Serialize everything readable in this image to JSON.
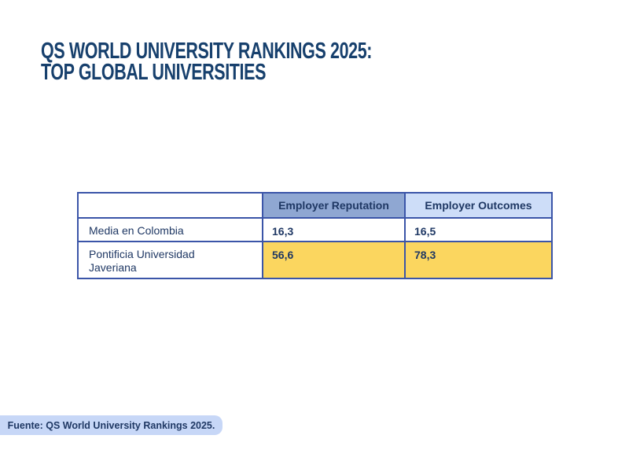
{
  "slide": {
    "background": "#ffffff",
    "accent_navy": "#17406d"
  },
  "title": {
    "line1": "QS WORLD UNIVERSITY RANKINGS 2025:",
    "line2": "TOP GLOBAL UNIVERSITIES"
  },
  "table": {
    "header": {
      "corner_label": "",
      "columns": [
        {
          "label": "Employer Reputation",
          "bg": "#8fa7d2"
        },
        {
          "label": "Employer Outcomes",
          "bg": "#cdddf8"
        }
      ]
    },
    "rows": [
      {
        "label": "Media en Colombia",
        "values": [
          "16,3",
          "16,5"
        ],
        "highlighted": false
      },
      {
        "label": "Pontificia Universidad Javeriana",
        "values": [
          "56,6",
          "78,3"
        ],
        "highlighted": true
      }
    ],
    "colors": {
      "border": "#3b55a8",
      "text": "#1f3864",
      "highlight": "#fbd65f"
    }
  },
  "footer": {
    "text": "Fuente: QS World University Rankings 2025.",
    "bg": "#c7d7f7",
    "text_color": "#1f3864"
  },
  "chart_data": {
    "type": "table",
    "title": "QS WORLD UNIVERSITY RANKINGS 2025: TOP GLOBAL UNIVERSITIES",
    "columns": [
      "",
      "Employer Reputation",
      "Employer Outcomes"
    ],
    "rows": [
      {
        "label": "Media en Colombia",
        "values": [
          16.3,
          16.5
        ]
      },
      {
        "label": "Pontificia Universidad Javeriana",
        "values": [
          56.6,
          78.3
        ]
      }
    ],
    "value_format": "decimal-comma",
    "highlighted_row": "Pontificia Universidad Javeriana",
    "source": "Fuente: QS World University Rankings 2025."
  }
}
